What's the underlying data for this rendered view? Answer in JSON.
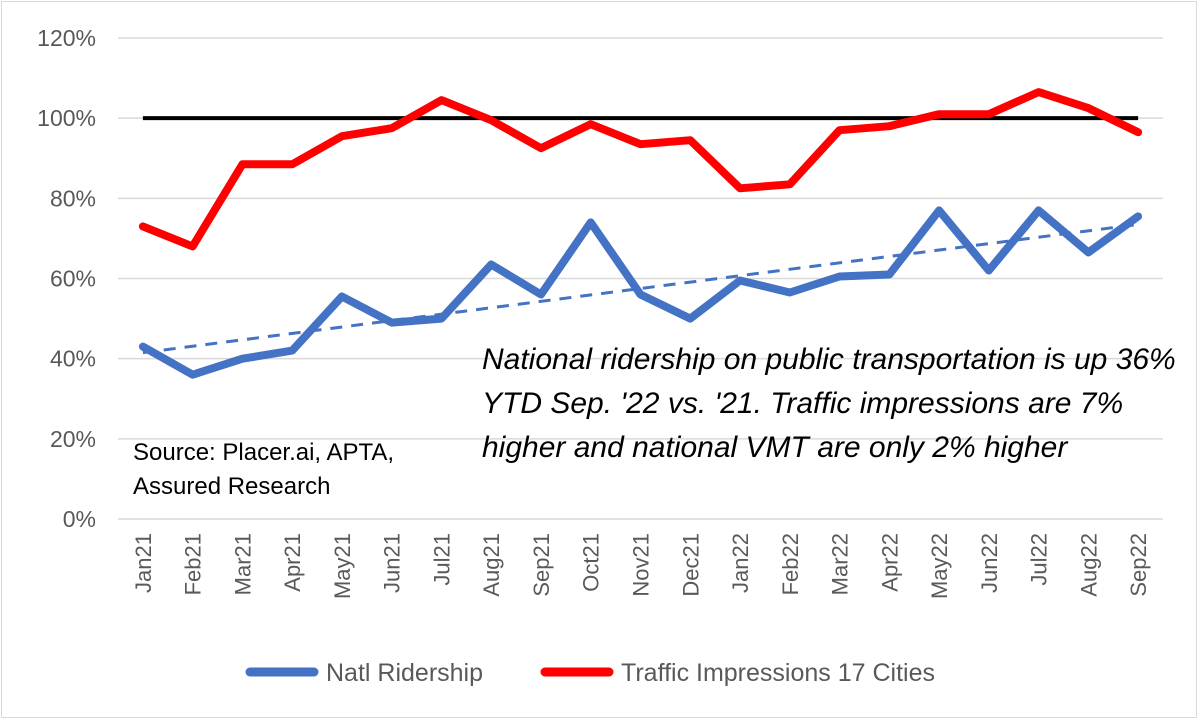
{
  "chart_data": {
    "type": "line",
    "categories": [
      "Jan21",
      "Feb21",
      "Mar21",
      "Apr21",
      "May21",
      "Jun21",
      "Jul21",
      "Aug21",
      "Sep21",
      "Oct21",
      "Nov21",
      "Dec21",
      "Jan22",
      "Feb22",
      "Mar22",
      "Apr22",
      "May22",
      "Jun22",
      "Jul22",
      "Aug22",
      "Sep22"
    ],
    "ylim": [
      0,
      120
    ],
    "yticks": [
      "0%",
      "20%",
      "40%",
      "60%",
      "80%",
      "100%",
      "120%"
    ],
    "grid": true,
    "legend_position": "bottom",
    "reference_line": 100,
    "series": [
      {
        "name": "Natl Ridership",
        "color": "#4472c4",
        "values": [
          43,
          36,
          40,
          42,
          55.5,
          49,
          50,
          63.5,
          56,
          74,
          56,
          50,
          59.5,
          56.5,
          60.5,
          61,
          77,
          62,
          77,
          66.5,
          75.5
        ]
      },
      {
        "name": "Traffic Impressions 17 Cities",
        "color": "#ff0000",
        "values": [
          73,
          68,
          88.5,
          88.5,
          95.5,
          97.5,
          104.5,
          99.5,
          92.5,
          98.5,
          93.5,
          94.5,
          82.5,
          83.5,
          97,
          98,
          101,
          101,
          106.5,
          102.5,
          96.5
        ]
      }
    ],
    "trendline": {
      "series": "Natl Ridership",
      "color": "#4472c4",
      "start": 41.5,
      "end": 73.5
    },
    "annotations": [
      "National ridership on public transportation is up 36% YTD Sep. '22 vs. '21. Traffic impressions are 7% higher and national VMT are only 2% higher",
      "Source: Placer.ai, APTA, Assured Research"
    ]
  }
}
